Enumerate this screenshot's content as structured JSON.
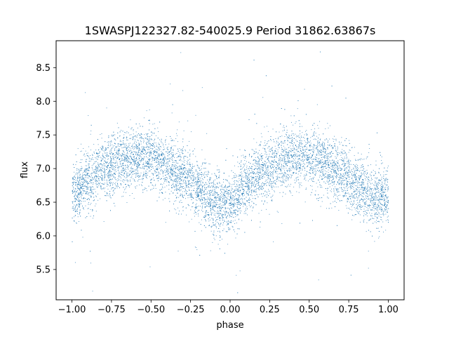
{
  "chart_data": {
    "type": "scatter",
    "title": "1SWASPJ122327.82-540025.9 Period 31862.63867s",
    "xlabel": "phase",
    "ylabel": "flux",
    "xlim": [
      -1.1,
      1.1
    ],
    "ylim": [
      5.05,
      8.9
    ],
    "xticks": [
      -1.0,
      -0.75,
      -0.5,
      -0.25,
      0.0,
      0.25,
      0.5,
      0.75,
      1.0
    ],
    "xtick_labels": [
      "−1.00",
      "−0.75",
      "−0.50",
      "−0.25",
      "0.00",
      "0.25",
      "0.50",
      "0.75",
      "1.00"
    ],
    "yticks": [
      5.5,
      6.0,
      6.5,
      7.0,
      7.5,
      8.0,
      8.5
    ],
    "ytick_labels": [
      "5.5",
      "6.0",
      "6.5",
      "7.0",
      "7.5",
      "8.0",
      "8.5"
    ],
    "grid": false,
    "marker_color": "#1f77b4",
    "series": [
      {
        "description_points": "phase-folded light curve, mirrored over phase -1..1",
        "x": [
          -1.0,
          -0.9,
          -0.8,
          -0.7,
          -0.6,
          -0.5,
          -0.4,
          -0.3,
          -0.2,
          -0.1,
          0.0,
          0.1,
          0.2,
          0.3,
          0.4,
          0.5,
          0.6,
          0.7,
          0.8,
          0.9,
          1.0
        ],
        "y": [
          6.6,
          6.85,
          7.0,
          7.12,
          7.18,
          7.15,
          7.05,
          6.9,
          6.7,
          6.5,
          6.45,
          6.75,
          6.95,
          7.1,
          7.18,
          7.15,
          7.05,
          6.9,
          6.75,
          6.6,
          6.6
        ]
      }
    ]
  }
}
